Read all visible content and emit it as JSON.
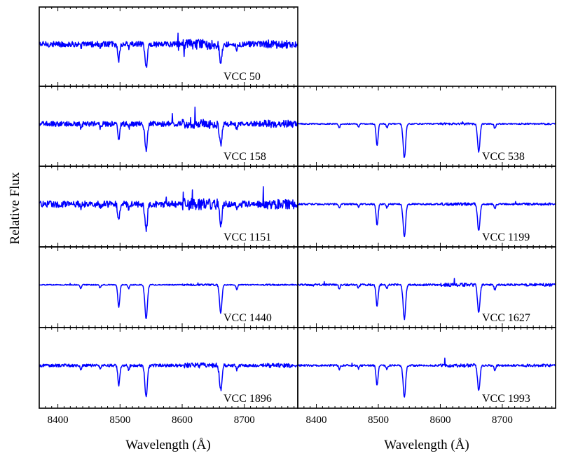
{
  "chart_data": {
    "type": "line",
    "ylabel": "Relative Flux",
    "xlabel": "Wavelength (Å)",
    "xlim": [
      8370,
      8786
    ],
    "xticks": [
      8400,
      8500,
      8600,
      8700
    ],
    "ca_triplet_lines": [
      8498,
      8542,
      8662
    ],
    "line_color": "#0000ff",
    "panels": [
      {
        "name": "VCC 50",
        "column": "left",
        "row": 0,
        "noise": 0.9,
        "depth": 0.7
      },
      {
        "name": "VCC 158",
        "column": "left",
        "row": 1,
        "noise": 0.8,
        "depth": 0.75
      },
      {
        "name": "VCC 538",
        "column": "right",
        "row": 1,
        "noise": 0.18,
        "depth": 1.0
      },
      {
        "name": "VCC 1151",
        "column": "left",
        "row": 2,
        "noise": 1.0,
        "depth": 0.75
      },
      {
        "name": "VCC 1199",
        "column": "right",
        "row": 2,
        "noise": 0.25,
        "depth": 0.95
      },
      {
        "name": "VCC 1440",
        "column": "left",
        "row": 3,
        "noise": 0.15,
        "depth": 1.0
      },
      {
        "name": "VCC 1627",
        "column": "right",
        "row": 3,
        "noise": 0.3,
        "depth": 1.0
      },
      {
        "name": "VCC 1896",
        "column": "left",
        "row": 4,
        "noise": 0.45,
        "depth": 0.9
      },
      {
        "name": "VCC 1993",
        "column": "right",
        "row": 4,
        "noise": 0.28,
        "depth": 0.9
      }
    ]
  }
}
